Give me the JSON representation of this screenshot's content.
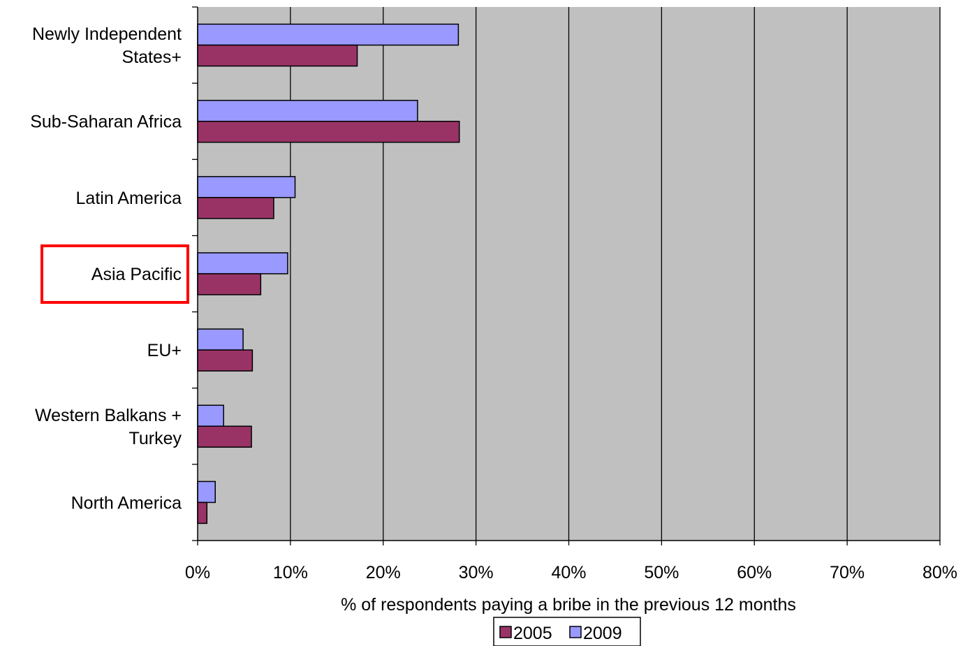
{
  "chart_data": {
    "type": "bar",
    "orientation": "horizontal",
    "title": "",
    "categories": [
      [
        "Newly Independent",
        "States+"
      ],
      [
        "Sub-Saharan Africa"
      ],
      [
        "Latin America"
      ],
      [
        "Asia Pacific"
      ],
      [
        "EU+"
      ],
      [
        "Western Balkans +",
        "Turkey"
      ],
      [
        "North America"
      ]
    ],
    "series": [
      {
        "name": "2005",
        "color": "#993366",
        "values": [
          17.2,
          28.2,
          8.2,
          6.8,
          5.9,
          5.8,
          1.0
        ]
      },
      {
        "name": "2009",
        "color": "#9999ff",
        "values": [
          28.1,
          23.7,
          10.5,
          9.7,
          4.9,
          2.8,
          1.9
        ]
      }
    ],
    "xlabel": "% of respondents paying a bribe in the previous 12 months",
    "ylabel": "",
    "xlim": [
      0,
      80
    ],
    "xticks": [
      "0%",
      "10%",
      "20%",
      "30%",
      "40%",
      "50%",
      "60%",
      "70%",
      "80%"
    ],
    "grid": "vertical",
    "plot_background": "#c0c0c0",
    "legend_placement": "bottom-center",
    "legend_order": [
      "2005",
      "2009"
    ],
    "highlight": {
      "category_index": 3,
      "color": "#ff0000"
    }
  }
}
